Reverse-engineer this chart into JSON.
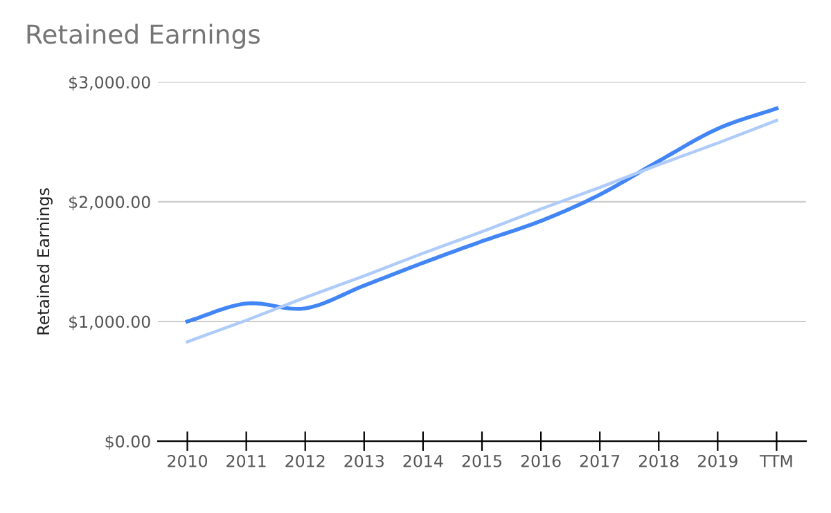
{
  "chart_data": {
    "type": "line",
    "title": "Retained Earnings",
    "ylabel": "Retained Earnings",
    "categories": [
      "2010",
      "2011",
      "2012",
      "2013",
      "2014",
      "2015",
      "2016",
      "2017",
      "2018",
      "2019",
      "TTM"
    ],
    "series": [
      {
        "color": "#4285f4",
        "values": [
          1000,
          1150,
          1110,
          1300,
          1490,
          1670,
          1840,
          2060,
          2340,
          2610,
          2780
        ]
      },
      {
        "color": "#aecbfa",
        "values": [
          830,
          1010,
          1200,
          1380,
          1570,
          1750,
          1940,
          2120,
          2310,
          2490,
          2680
        ]
      }
    ],
    "ylim": [
      0,
      3000
    ],
    "yticks": [
      {
        "value": 0,
        "label": "$0.00"
      },
      {
        "value": 1000,
        "label": "$1,000.00"
      },
      {
        "value": 2000,
        "label": "$2,000.00"
      },
      {
        "value": 3000,
        "label": "$3,000.00"
      }
    ],
    "grid": "y",
    "marker": "none",
    "line_style": "solid"
  }
}
